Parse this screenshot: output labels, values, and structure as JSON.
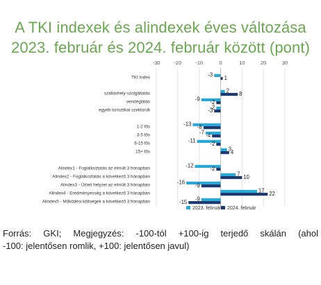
{
  "title": {
    "line1": "A TKI indexek és alindexek éves változása",
    "line2": "2023. február és 2024. február között (pont)"
  },
  "source": {
    "line1": "Forrás: GKI; Megjegyzés: -100-tól +100-ig terjedő skálán (ahol",
    "line2": "-100: jelentősen romlik, +100: jelentősen javul)"
  },
  "colors": {
    "series_2023": "#2aa8d8",
    "series_2024": "#1f3a6e",
    "title": "#6aa84f"
  },
  "chart_data": {
    "type": "bar",
    "orientation": "horizontal",
    "xlim": [
      -30,
      30
    ],
    "xticks": [
      -30,
      -20,
      -10,
      0,
      10,
      20,
      30
    ],
    "grid": true,
    "legend_position": "bottom",
    "categories": [
      "TKI Index",
      "szálláshely-szolgáltatás",
      "vendéglátás",
      "egyéb turisztikai szektorok",
      "1-2 fős",
      "3-5 fős",
      "6-15 fős",
      "15+ fős",
      "Alindex1 - Foglalkoztatás az elmúlt 3 hónapban",
      "Alindex2 - Foglalkoztatás a következő 3 hónapban",
      "Alindex3 - Üzleti helyzet az elmúlt 3 hónapban",
      "Alindex4 - Eredményesség a következő 3 hónapban",
      "Alindex5 - Működési költségek a következő 3 hónapban"
    ],
    "series": [
      {
        "name": "2023. február",
        "values": [
          -3,
          2,
          -9,
          -2,
          -13,
          -7,
          -11,
          3,
          -12,
          7,
          -16,
          17,
          -9
        ]
      },
      {
        "name": "2024. február",
        "values": [
          1,
          8,
          -2,
          -3,
          -8,
          -4,
          -2,
          4,
          -2,
          10,
          -9,
          22,
          -15
        ]
      }
    ]
  }
}
